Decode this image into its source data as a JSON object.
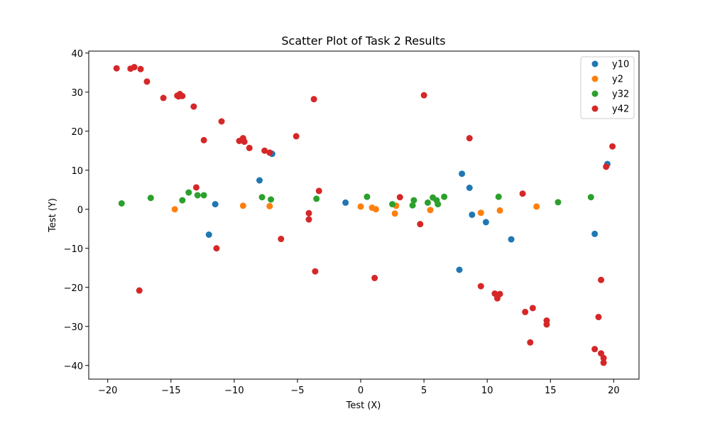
{
  "chart_data": {
    "type": "scatter",
    "title": "Scatter Plot of Task 2 Results",
    "xlabel": "Test (X)",
    "ylabel": "Test (Y)",
    "xlim": [
      -21.5,
      22
    ],
    "ylim": [
      -43.5,
      40.5
    ],
    "xticks": [
      -20,
      -15,
      -10,
      -5,
      0,
      5,
      10,
      15,
      20
    ],
    "yticks": [
      -40,
      -30,
      -20,
      -10,
      0,
      10,
      20,
      30,
      40
    ],
    "grid": false,
    "legend_position": "top-right",
    "series": [
      {
        "name": "y10",
        "color": "#1f77b4",
        "points": [
          [
            -11.5,
            1.3
          ],
          [
            -12.0,
            -6.5
          ],
          [
            -8.0,
            7.4
          ],
          [
            -7.0,
            14.2
          ],
          [
            -1.2,
            1.7
          ],
          [
            8.0,
            9.1
          ],
          [
            8.6,
            5.5
          ],
          [
            8.8,
            -1.4
          ],
          [
            9.9,
            -3.3
          ],
          [
            7.8,
            -15.5
          ],
          [
            11.9,
            -7.7
          ],
          [
            18.5,
            -6.3
          ],
          [
            19.5,
            11.6
          ]
        ]
      },
      {
        "name": "y2",
        "color": "#ff7f0e",
        "points": [
          [
            -14.7,
            0.0
          ],
          [
            -9.3,
            0.9
          ],
          [
            -7.2,
            0.8
          ],
          [
            0.0,
            0.7
          ],
          [
            0.9,
            0.4
          ],
          [
            1.2,
            0.0
          ],
          [
            2.7,
            -1.1
          ],
          [
            2.8,
            0.9
          ],
          [
            5.5,
            -0.2
          ],
          [
            9.5,
            -0.9
          ],
          [
            11.0,
            -0.3
          ],
          [
            13.9,
            0.7
          ]
        ]
      },
      {
        "name": "y32",
        "color": "#2ca02c",
        "points": [
          [
            -18.9,
            1.5
          ],
          [
            -16.6,
            2.9
          ],
          [
            -14.1,
            2.3
          ],
          [
            -13.6,
            4.3
          ],
          [
            -12.9,
            3.6
          ],
          [
            -12.4,
            3.6
          ],
          [
            -7.8,
            3.1
          ],
          [
            -7.1,
            2.5
          ],
          [
            -3.5,
            2.7
          ],
          [
            0.5,
            3.2
          ],
          [
            2.5,
            1.3
          ],
          [
            4.1,
            1.0
          ],
          [
            4.2,
            2.3
          ],
          [
            5.3,
            1.7
          ],
          [
            5.7,
            3.0
          ],
          [
            6.0,
            2.3
          ],
          [
            6.1,
            1.3
          ],
          [
            6.6,
            3.2
          ],
          [
            10.9,
            3.2
          ],
          [
            15.6,
            1.8
          ],
          [
            18.2,
            3.1
          ]
        ]
      },
      {
        "name": "y42",
        "color": "#d62728",
        "points": [
          [
            -19.3,
            36.1
          ],
          [
            -18.2,
            36.0
          ],
          [
            -17.9,
            36.4
          ],
          [
            -17.4,
            35.9
          ],
          [
            -16.9,
            32.7
          ],
          [
            -15.6,
            28.5
          ],
          [
            -14.5,
            29.1
          ],
          [
            -14.3,
            29.5
          ],
          [
            -14.4,
            28.9
          ],
          [
            -14.1,
            29.0
          ],
          [
            -13.2,
            26.3
          ],
          [
            -12.4,
            17.7
          ],
          [
            -11.0,
            22.5
          ],
          [
            -9.6,
            17.5
          ],
          [
            -9.3,
            18.2
          ],
          [
            -9.2,
            17.3
          ],
          [
            -8.8,
            15.7
          ],
          [
            -7.6,
            15.0
          ],
          [
            -7.2,
            14.5
          ],
          [
            -5.1,
            18.7
          ],
          [
            -3.7,
            28.2
          ],
          [
            -13.0,
            5.6
          ],
          [
            -3.3,
            4.7
          ],
          [
            -4.1,
            -1.0
          ],
          [
            -4.1,
            -2.6
          ],
          [
            -6.3,
            -7.6
          ],
          [
            -11.4,
            -10.0
          ],
          [
            -17.5,
            -20.8
          ],
          [
            -3.6,
            -15.9
          ],
          [
            1.1,
            -17.6
          ],
          [
            3.1,
            3.1
          ],
          [
            4.7,
            -3.8
          ],
          [
            5.0,
            29.2
          ],
          [
            8.6,
            18.2
          ],
          [
            9.5,
            -19.7
          ],
          [
            10.6,
            -21.6
          ],
          [
            10.8,
            -22.8
          ],
          [
            11.0,
            -21.7
          ],
          [
            12.8,
            4.0
          ],
          [
            13.0,
            -26.3
          ],
          [
            13.6,
            -25.3
          ],
          [
            14.7,
            -28.5
          ],
          [
            14.7,
            -29.5
          ],
          [
            13.4,
            -34.1
          ],
          [
            18.5,
            -35.8
          ],
          [
            18.8,
            -27.6
          ],
          [
            19.0,
            -18.1
          ],
          [
            19.0,
            -36.9
          ],
          [
            19.2,
            -38.1
          ],
          [
            19.2,
            -39.3
          ],
          [
            19.4,
            10.9
          ],
          [
            19.9,
            16.1
          ]
        ]
      }
    ]
  }
}
